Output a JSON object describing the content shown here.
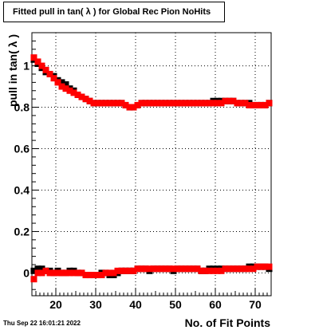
{
  "chart_data": {
    "type": "scatter",
    "title": "Fitted pull in tan( λ ) for Global Rec Pion NoHits",
    "xlabel": "No. of Fit Points",
    "ylabel": "pull in tan( λ )",
    "xlim": [
      14,
      74
    ],
    "ylim": [
      -0.11,
      1.16
    ],
    "grid": true,
    "x_ticks": [
      20,
      30,
      40,
      50,
      60,
      70
    ],
    "y_ticks": [
      0,
      0.2,
      0.4,
      0.6,
      0.8,
      1
    ],
    "series": [
      {
        "color": "#000000",
        "x": [
          14.5,
          15.5,
          16.5,
          17.5,
          18.5,
          19.5,
          20.5,
          21.5,
          22.5,
          23.5,
          24.5,
          25.5,
          26.5,
          27.5,
          28.5,
          29.5,
          30.5,
          31.5,
          32.5,
          33.5,
          34.5,
          35.5,
          36.5,
          37.5,
          38.5,
          39.5,
          40.5,
          41.5,
          42.5,
          43.5,
          44.5,
          45.5,
          46.5,
          47.5,
          48.5,
          49.5,
          50.5,
          51.5,
          52.5,
          53.5,
          54.5,
          55.5,
          56.5,
          57.5,
          58.5,
          59.5,
          60.5,
          61.5,
          62.5,
          63.5,
          64.5,
          65.5,
          66.5,
          67.5,
          68.5,
          69.5,
          70.5,
          71.5,
          72.5,
          73.5
        ],
        "y": [
          1.03,
          1.01,
          0.99,
          0.97,
          0.96,
          0.95,
          0.93,
          0.92,
          0.91,
          0.89,
          0.88,
          0.86,
          0.85,
          0.84,
          0.83,
          0.82,
          0.82,
          0.82,
          0.82,
          0.82,
          0.82,
          0.82,
          0.82,
          0.81,
          0.8,
          0.8,
          0.81,
          0.82,
          0.82,
          0.82,
          0.82,
          0.82,
          0.82,
          0.82,
          0.82,
          0.82,
          0.82,
          0.82,
          0.82,
          0.82,
          0.82,
          0.82,
          0.82,
          0.82,
          0.82,
          0.83,
          0.83,
          0.83,
          0.83,
          0.83,
          0.83,
          0.82,
          0.82,
          0.82,
          0.82,
          0.81,
          0.81,
          0.81,
          0.81,
          0.82
        ],
        "y2": [
          0.01,
          0.02,
          0.02,
          0.01,
          0.01,
          0.0,
          0.01,
          0.0,
          0.0,
          0.01,
          0.01,
          0.0,
          0.0,
          -0.01,
          -0.01,
          -0.01,
          -0.01,
          0.0,
          0.0,
          -0.01,
          -0.01,
          0.0,
          0.01,
          0.01,
          0.01,
          0.01,
          0.02,
          0.02,
          0.02,
          0.01,
          0.02,
          0.02,
          0.02,
          0.02,
          0.02,
          0.01,
          0.02,
          0.02,
          0.02,
          0.02,
          0.02,
          0.02,
          0.01,
          0.01,
          0.02,
          0.02,
          0.02,
          0.02,
          0.02,
          0.02,
          0.02,
          0.02,
          0.02,
          0.02,
          0.03,
          0.03,
          0.03,
          0.03,
          0.03,
          0.02
        ]
      },
      {
        "color": "#ff0000",
        "x": [
          14.5,
          15.5,
          16.5,
          17.5,
          18.5,
          19.5,
          20.5,
          21.5,
          22.5,
          23.5,
          24.5,
          25.5,
          26.5,
          27.5,
          28.5,
          29.5,
          30.5,
          31.5,
          32.5,
          33.5,
          34.5,
          35.5,
          36.5,
          37.5,
          38.5,
          39.5,
          40.5,
          41.5,
          42.5,
          43.5,
          44.5,
          45.5,
          46.5,
          47.5,
          48.5,
          49.5,
          50.5,
          51.5,
          52.5,
          53.5,
          54.5,
          55.5,
          56.5,
          57.5,
          58.5,
          59.5,
          60.5,
          61.5,
          62.5,
          63.5,
          64.5,
          65.5,
          66.5,
          67.5,
          68.5,
          69.5,
          70.5,
          71.5,
          72.5,
          73.5
        ],
        "y": [
          1.04,
          1.02,
          1.0,
          0.98,
          0.96,
          0.94,
          0.92,
          0.9,
          0.89,
          0.88,
          0.87,
          0.86,
          0.85,
          0.84,
          0.83,
          0.82,
          0.82,
          0.82,
          0.82,
          0.82,
          0.82,
          0.82,
          0.82,
          0.81,
          0.8,
          0.8,
          0.81,
          0.82,
          0.82,
          0.82,
          0.82,
          0.82,
          0.82,
          0.82,
          0.82,
          0.82,
          0.82,
          0.82,
          0.82,
          0.82,
          0.82,
          0.82,
          0.82,
          0.82,
          0.82,
          0.82,
          0.82,
          0.82,
          0.83,
          0.83,
          0.83,
          0.82,
          0.82,
          0.82,
          0.81,
          0.81,
          0.81,
          0.81,
          0.81,
          0.82
        ],
        "y2": [
          -0.03,
          0.0,
          0.0,
          0.01,
          0.0,
          0.0,
          0.0,
          0.0,
          0.0,
          0.0,
          0.0,
          0.0,
          0.0,
          -0.01,
          -0.01,
          -0.01,
          -0.01,
          -0.01,
          0.0,
          0.0,
          0.0,
          0.01,
          0.01,
          0.01,
          0.01,
          0.01,
          0.02,
          0.02,
          0.02,
          0.02,
          0.02,
          0.02,
          0.02,
          0.02,
          0.02,
          0.02,
          0.02,
          0.02,
          0.02,
          0.02,
          0.02,
          0.02,
          0.01,
          0.01,
          0.01,
          0.01,
          0.01,
          0.01,
          0.02,
          0.02,
          0.02,
          0.02,
          0.02,
          0.02,
          0.02,
          0.02,
          0.03,
          0.03,
          0.03,
          0.03
        ]
      }
    ]
  },
  "footer": {
    "timestamp": "Thu Sep 22 16:01:21 2022"
  }
}
